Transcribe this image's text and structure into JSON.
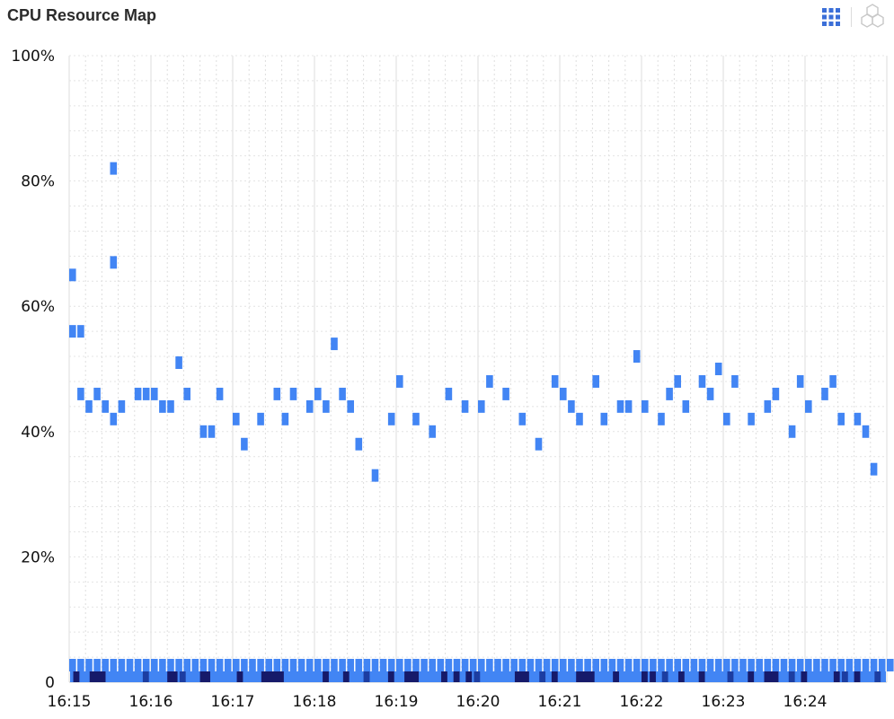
{
  "header": {
    "title": "CPU Resource Map",
    "icons": [
      "grid-view-icon",
      "hexagon-view-icon"
    ]
  },
  "chart_data": {
    "type": "heatmap",
    "title": "CPU Resource Map",
    "xlabel": "",
    "ylabel": "",
    "x_ticks": [
      "16:15",
      "16:16",
      "16:17",
      "16:18",
      "16:19",
      "16:20",
      "16:21",
      "16:22",
      "16:23",
      "16:24"
    ],
    "y_ticks": [
      "0",
      "20%",
      "40%",
      "60%",
      "80%",
      "100%"
    ],
    "ylim": [
      0,
      100
    ],
    "x_range": [
      "16:15",
      "16:25"
    ],
    "grid": true,
    "colors": {
      "low_density": "#4285f4",
      "mid_density": "#1c3da1",
      "high_density": "#161a6a"
    },
    "points": [
      {
        "t": 0.0,
        "cpu": 64
      },
      {
        "t": 0.0,
        "cpu": 55
      },
      {
        "t": 0.1,
        "cpu": 55
      },
      {
        "t": 0.1,
        "cpu": 45
      },
      {
        "t": 0.2,
        "cpu": 43
      },
      {
        "t": 0.3,
        "cpu": 45
      },
      {
        "t": 0.4,
        "cpu": 43
      },
      {
        "t": 0.5,
        "cpu": 41
      },
      {
        "t": 0.6,
        "cpu": 43
      },
      {
        "t": 0.8,
        "cpu": 45
      },
      {
        "t": 0.9,
        "cpu": 45
      },
      {
        "t": 1.0,
        "cpu": 45
      },
      {
        "t": 1.1,
        "cpu": 43
      },
      {
        "t": 1.2,
        "cpu": 43
      },
      {
        "t": 1.3,
        "cpu": 50
      },
      {
        "t": 1.4,
        "cpu": 45
      },
      {
        "t": 1.6,
        "cpu": 39
      },
      {
        "t": 1.7,
        "cpu": 39
      },
      {
        "t": 1.8,
        "cpu": 45
      },
      {
        "t": 2.0,
        "cpu": 41
      },
      {
        "t": 2.1,
        "cpu": 37
      },
      {
        "t": 2.3,
        "cpu": 41
      },
      {
        "t": 2.5,
        "cpu": 45
      },
      {
        "t": 2.6,
        "cpu": 41
      },
      {
        "t": 2.7,
        "cpu": 45
      },
      {
        "t": 2.9,
        "cpu": 43
      },
      {
        "t": 3.0,
        "cpu": 45
      },
      {
        "t": 3.1,
        "cpu": 43
      },
      {
        "t": 3.2,
        "cpu": 53
      },
      {
        "t": 3.3,
        "cpu": 45
      },
      {
        "t": 3.4,
        "cpu": 43
      },
      {
        "t": 3.5,
        "cpu": 37
      },
      {
        "t": 3.7,
        "cpu": 32
      },
      {
        "t": 3.9,
        "cpu": 41
      },
      {
        "t": 4.0,
        "cpu": 47
      },
      {
        "t": 4.2,
        "cpu": 41
      },
      {
        "t": 4.4,
        "cpu": 39
      },
      {
        "t": 4.6,
        "cpu": 45
      },
      {
        "t": 4.8,
        "cpu": 43
      },
      {
        "t": 5.0,
        "cpu": 43
      },
      {
        "t": 5.1,
        "cpu": 47
      },
      {
        "t": 5.3,
        "cpu": 45
      },
      {
        "t": 5.5,
        "cpu": 41
      },
      {
        "t": 5.7,
        "cpu": 37
      },
      {
        "t": 5.9,
        "cpu": 47
      },
      {
        "t": 6.0,
        "cpu": 45
      },
      {
        "t": 6.1,
        "cpu": 43
      },
      {
        "t": 6.2,
        "cpu": 41
      },
      {
        "t": 6.4,
        "cpu": 47
      },
      {
        "t": 6.5,
        "cpu": 41
      },
      {
        "t": 6.7,
        "cpu": 43
      },
      {
        "t": 6.8,
        "cpu": 43
      },
      {
        "t": 6.9,
        "cpu": 51
      },
      {
        "t": 7.0,
        "cpu": 43
      },
      {
        "t": 7.2,
        "cpu": 41
      },
      {
        "t": 7.3,
        "cpu": 45
      },
      {
        "t": 7.4,
        "cpu": 47
      },
      {
        "t": 7.5,
        "cpu": 43
      },
      {
        "t": 7.7,
        "cpu": 47
      },
      {
        "t": 7.8,
        "cpu": 45
      },
      {
        "t": 7.9,
        "cpu": 49
      },
      {
        "t": 8.0,
        "cpu": 41
      },
      {
        "t": 8.1,
        "cpu": 47
      },
      {
        "t": 8.3,
        "cpu": 41
      },
      {
        "t": 8.5,
        "cpu": 43
      },
      {
        "t": 8.6,
        "cpu": 45
      },
      {
        "t": 8.8,
        "cpu": 39
      },
      {
        "t": 8.9,
        "cpu": 47
      },
      {
        "t": 9.0,
        "cpu": 43
      },
      {
        "t": 9.2,
        "cpu": 45
      },
      {
        "t": 9.3,
        "cpu": 47
      },
      {
        "t": 9.4,
        "cpu": 41
      },
      {
        "t": 9.6,
        "cpu": 41
      },
      {
        "t": 9.7,
        "cpu": 39
      },
      {
        "t": 9.8,
        "cpu": 33
      },
      {
        "t": 0.5,
        "cpu": 81
      },
      {
        "t": 0.5,
        "cpu": 66
      }
    ]
  }
}
